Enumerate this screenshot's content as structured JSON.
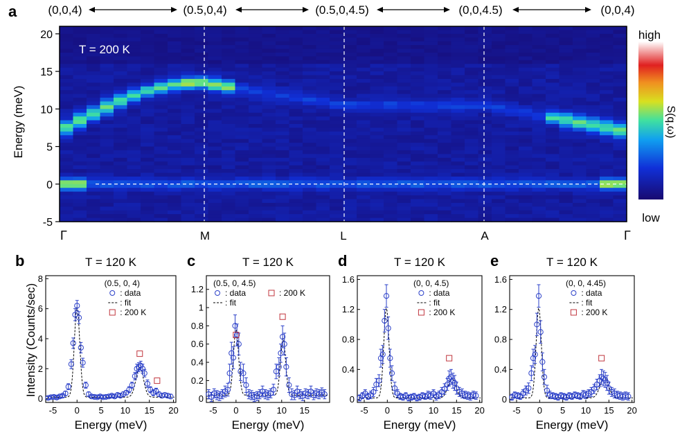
{
  "panel_a": {
    "letter": "a",
    "path_labels": [
      "(0,0,4)",
      "(0.5,0,4)",
      "(0.5,0,4.5)",
      "(0,0,4.5)",
      "(0,0,4)"
    ],
    "point_labels": [
      "Γ",
      "M",
      "L",
      "A",
      "Γ"
    ],
    "temperature": "T = 200 K",
    "colorbar": {
      "high": "high",
      "low": "low",
      "label": "S(q,ω)"
    }
  },
  "chart_data": [
    {
      "type": "heatmap",
      "panel": "a",
      "ylabel": "Energy (meV)",
      "ylim": [
        -5,
        21
      ],
      "yticks": [
        -5,
        0,
        5,
        10,
        15,
        20
      ],
      "x_points": [
        "Γ",
        "M",
        "L",
        "A",
        "Γ"
      ],
      "elastic_line_energy": 0,
      "dispersion": {
        "energy_at_M": 13.5,
        "energy_at_L": 10.5,
        "energy_at_A": 10.5,
        "energy_near_gamma": 7
      },
      "intensity_scale": [
        "low",
        "high"
      ]
    },
    {
      "type": "scatter",
      "panel": "b",
      "letter": "b",
      "title": "T = 120 K",
      "q": "(0.5, 0, 4)",
      "xlabel": "Energy (meV)",
      "ylabel": "Intensity (Counts/sec)",
      "xlim": [
        -6.5,
        20.5
      ],
      "ylim": [
        -0.25,
        8.2
      ],
      "xticks": [
        -5,
        0,
        5,
        10,
        15,
        20
      ],
      "yticks": [
        0,
        2,
        4,
        6,
        8
      ],
      "legend": {
        "data": ": data",
        "fit": ": fit",
        "ref": ": 200 K"
      },
      "peaks": [
        {
          "center": 0,
          "height": 6.0,
          "width": 0.8
        },
        {
          "center": 13,
          "height": 2.0,
          "width": 1.1
        }
      ],
      "baseline": 0.1,
      "x": [
        -6,
        -5.4,
        -4.8,
        -4.2,
        -3.6,
        -3,
        -2.4,
        -1.8,
        -1.2,
        -0.8,
        -0.4,
        0,
        0.4,
        0.8,
        1.2,
        1.8,
        2.4,
        3,
        3.6,
        4.2,
        4.8,
        5.4,
        6,
        6.6,
        7.2,
        7.8,
        8.4,
        9,
        9.6,
        10.2,
        10.8,
        11.4,
        12,
        12.4,
        12.8,
        13.2,
        13.6,
        14,
        14.6,
        15.2,
        15.8,
        16.4,
        17,
        17.6,
        18.2,
        18.8,
        19.4
      ],
      "y": [
        0.05,
        0.1,
        0.12,
        0.08,
        0.15,
        0.2,
        0.35,
        0.8,
        2.3,
        3.7,
        5.6,
        6.2,
        5.4,
        3.4,
        2.4,
        0.9,
        0.3,
        0.15,
        0.12,
        0.1,
        0.15,
        0.1,
        0.12,
        0.15,
        0.2,
        0.15,
        0.25,
        0.2,
        0.3,
        0.4,
        0.6,
        0.9,
        1.5,
        2.0,
        2.1,
        2.2,
        2.0,
        1.7,
        1.0,
        0.6,
        0.4,
        0.5,
        0.3,
        0.2,
        0.25,
        0.2,
        0.15
      ],
      "err": [
        0.1,
        0.1,
        0.1,
        0.1,
        0.1,
        0.1,
        0.15,
        0.2,
        0.3,
        0.35,
        0.4,
        0.35,
        0.4,
        0.35,
        0.3,
        0.2,
        0.15,
        0.1,
        0.1,
        0.1,
        0.1,
        0.1,
        0.1,
        0.1,
        0.1,
        0.1,
        0.12,
        0.12,
        0.15,
        0.15,
        0.2,
        0.2,
        0.25,
        0.3,
        0.3,
        0.3,
        0.3,
        0.25,
        0.25,
        0.2,
        0.2,
        0.2,
        0.15,
        0.15,
        0.15,
        0.15,
        0.15
      ],
      "ref_200K": [
        {
          "x": 13,
          "y": 3.0
        },
        {
          "x": 16.6,
          "y": 1.2
        }
      ]
    },
    {
      "type": "scatter",
      "panel": "c",
      "letter": "c",
      "title": "T = 120 K",
      "q": "(0.5, 0, 4.5)",
      "xlabel": "Energy (meV)",
      "ylabel": "",
      "xlim": [
        -6.5,
        20.5
      ],
      "ylim": [
        -0.04,
        1.35
      ],
      "xticks": [
        -5,
        0,
        5,
        10,
        15
      ],
      "yticks": [
        0,
        0.2,
        0.4,
        0.6,
        0.8,
        1.0,
        1.2
      ],
      "legend": {
        "data": ": data",
        "fit": ": fit",
        "ref": ": 200 K"
      },
      "peaks": [
        {
          "center": 0,
          "height": 0.72,
          "width": 0.8
        },
        {
          "center": 10.3,
          "height": 0.62,
          "width": 0.8
        }
      ],
      "baseline": 0.04,
      "x": [
        -6,
        -5.4,
        -4.8,
        -4.2,
        -3.6,
        -3,
        -2.4,
        -1.8,
        -1.4,
        -1,
        -0.6,
        -0.2,
        0.2,
        0.6,
        1,
        1.6,
        2.2,
        2.8,
        3.4,
        4,
        4.6,
        5.2,
        5.8,
        6.4,
        7,
        7.6,
        8.2,
        8.8,
        9.4,
        9.8,
        10.2,
        10.6,
        11,
        11.6,
        12.2,
        12.8,
        13.4,
        14,
        14.6,
        15.2,
        15.8,
        16.4,
        17,
        17.6,
        18.2,
        18.8,
        19.4
      ],
      "y": [
        0.05,
        0.02,
        0.06,
        0.04,
        0.03,
        0.05,
        0.08,
        0.1,
        0.28,
        0.5,
        0.45,
        0.8,
        0.7,
        0.6,
        0.3,
        0.28,
        0.15,
        0.05,
        0.04,
        0.02,
        0.03,
        0.05,
        0.08,
        0.05,
        0.04,
        0.06,
        0.1,
        0.3,
        0.35,
        0.5,
        0.68,
        0.6,
        0.35,
        0.15,
        0.05,
        0.04,
        0.08,
        0.05,
        0.03,
        0.06,
        0.05,
        0.08,
        0.04,
        0.06,
        0.05,
        0.07,
        0.05
      ],
      "err": [
        0.05,
        0.05,
        0.05,
        0.05,
        0.05,
        0.05,
        0.06,
        0.07,
        0.1,
        0.12,
        0.12,
        0.12,
        0.12,
        0.12,
        0.1,
        0.1,
        0.08,
        0.05,
        0.05,
        0.05,
        0.05,
        0.05,
        0.06,
        0.05,
        0.05,
        0.05,
        0.06,
        0.08,
        0.1,
        0.1,
        0.12,
        0.12,
        0.1,
        0.08,
        0.06,
        0.05,
        0.06,
        0.05,
        0.05,
        0.05,
        0.05,
        0.06,
        0.05,
        0.05,
        0.05,
        0.05,
        0.05
      ],
      "ref_200K": [
        {
          "x": 0,
          "y": 0.7
        },
        {
          "x": 10.2,
          "y": 0.9
        }
      ]
    },
    {
      "type": "scatter",
      "panel": "d",
      "letter": "d",
      "title": "T = 120 K",
      "q": "(0, 0, 4.5)",
      "xlabel": "Energy (meV)",
      "ylabel": "",
      "xlim": [
        -6.5,
        20.5
      ],
      "ylim": [
        -0.04,
        1.65
      ],
      "xticks": [
        -5,
        0,
        5,
        10,
        15,
        20
      ],
      "yticks": [
        0,
        0.4,
        0.8,
        1.2,
        1.6
      ],
      "legend": {
        "data": ": data",
        "fit": ": fit",
        "ref": ": 200 K"
      },
      "peaks": [
        {
          "center": -0.2,
          "height": 1.2,
          "width": 0.8
        },
        {
          "center": 14,
          "height": 0.26,
          "width": 1.2
        }
      ],
      "baseline": 0.02,
      "x": [
        -6,
        -5.4,
        -4.8,
        -4.2,
        -3.6,
        -3,
        -2.4,
        -1.8,
        -1.4,
        -1,
        -0.6,
        -0.2,
        0.2,
        0.6,
        1,
        1.6,
        2.2,
        2.8,
        3.4,
        4,
        4.6,
        5.2,
        5.8,
        6.4,
        7,
        7.6,
        8.2,
        8.8,
        9.4,
        10,
        10.6,
        11.2,
        11.8,
        12.4,
        13,
        13.4,
        13.8,
        14.2,
        14.6,
        15,
        15.6,
        16.2,
        16.8,
        17.4,
        18,
        18.6,
        19.2
      ],
      "y": [
        0.02,
        0.05,
        0.08,
        0.04,
        0.06,
        0.1,
        0.2,
        0.25,
        0.55,
        0.6,
        1.05,
        1.38,
        0.95,
        0.55,
        0.35,
        0.15,
        0.08,
        0.04,
        0.03,
        0.05,
        0.02,
        0.03,
        0.04,
        0.02,
        0.03,
        0.05,
        0.04,
        0.06,
        0.05,
        0.08,
        0.04,
        0.06,
        0.1,
        0.14,
        0.2,
        0.28,
        0.3,
        0.25,
        0.22,
        0.15,
        0.1,
        0.08,
        0.06,
        0.05,
        0.04,
        0.06,
        0.05
      ],
      "err": [
        0.04,
        0.04,
        0.05,
        0.04,
        0.05,
        0.06,
        0.08,
        0.08,
        0.12,
        0.12,
        0.15,
        0.15,
        0.15,
        0.12,
        0.1,
        0.08,
        0.05,
        0.04,
        0.04,
        0.04,
        0.04,
        0.04,
        0.04,
        0.04,
        0.04,
        0.04,
        0.04,
        0.05,
        0.05,
        0.05,
        0.05,
        0.05,
        0.06,
        0.07,
        0.08,
        0.1,
        0.1,
        0.1,
        0.1,
        0.08,
        0.06,
        0.06,
        0.05,
        0.05,
        0.05,
        0.05,
        0.05
      ],
      "ref_200K": [
        {
          "x": 13.4,
          "y": 0.55
        }
      ]
    },
    {
      "type": "scatter",
      "panel": "e",
      "letter": "e",
      "title": "T = 120 K",
      "q": "(0, 0, 4.45)",
      "xlabel": "Energy (meV)",
      "ylabel": "",
      "xlim": [
        -6.5,
        20.5
      ],
      "ylim": [
        -0.04,
        1.65
      ],
      "xticks": [
        -5,
        0,
        5,
        10,
        15,
        20
      ],
      "yticks": [
        0,
        0.4,
        0.8,
        1.2,
        1.6
      ],
      "legend": {
        "data": ": data",
        "fit": ": fit",
        "ref": ": 200 K"
      },
      "peaks": [
        {
          "center": -0.2,
          "height": 1.2,
          "width": 0.8
        },
        {
          "center": 14,
          "height": 0.27,
          "width": 1.3
        }
      ],
      "baseline": 0.02,
      "x": [
        -6,
        -5.4,
        -4.8,
        -4.2,
        -3.6,
        -3,
        -2.4,
        -1.8,
        -1.4,
        -1,
        -0.6,
        -0.2,
        0.2,
        0.6,
        1,
        1.6,
        2.2,
        2.8,
        3.4,
        4,
        4.6,
        5.2,
        5.8,
        6.4,
        7,
        7.6,
        8.2,
        8.8,
        9.4,
        10,
        10.6,
        11.2,
        11.8,
        12.4,
        13,
        13.4,
        13.8,
        14.2,
        14.6,
        15,
        15.6,
        16.2,
        16.8,
        17.4,
        18,
        18.6,
        19.2
      ],
      "y": [
        0.03,
        0.06,
        0.05,
        0.04,
        0.08,
        0.12,
        0.15,
        0.35,
        0.55,
        0.6,
        1.0,
        1.38,
        0.9,
        0.5,
        0.3,
        0.12,
        0.06,
        0.05,
        0.04,
        0.03,
        0.05,
        0.04,
        0.03,
        0.05,
        0.04,
        0.06,
        0.05,
        0.04,
        0.07,
        0.06,
        0.08,
        0.1,
        0.14,
        0.2,
        0.25,
        0.3,
        0.28,
        0.26,
        0.22,
        0.15,
        0.1,
        0.08,
        0.06,
        0.05,
        0.04,
        0.05,
        0.04
      ],
      "err": [
        0.04,
        0.04,
        0.04,
        0.04,
        0.05,
        0.06,
        0.07,
        0.1,
        0.12,
        0.12,
        0.15,
        0.15,
        0.15,
        0.12,
        0.1,
        0.07,
        0.05,
        0.04,
        0.04,
        0.04,
        0.04,
        0.04,
        0.04,
        0.04,
        0.04,
        0.04,
        0.04,
        0.04,
        0.05,
        0.05,
        0.05,
        0.06,
        0.06,
        0.07,
        0.08,
        0.1,
        0.1,
        0.1,
        0.1,
        0.08,
        0.06,
        0.06,
        0.05,
        0.05,
        0.05,
        0.05,
        0.05
      ],
      "ref_200K": [
        {
          "x": 13.4,
          "y": 0.55
        }
      ]
    }
  ]
}
